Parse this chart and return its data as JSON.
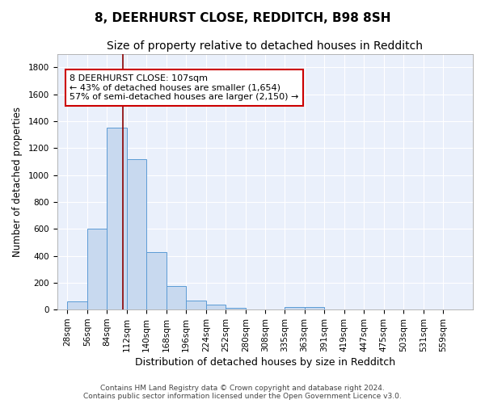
{
  "title": "8, DEERHURST CLOSE, REDDITCH, B98 8SH",
  "subtitle": "Size of property relative to detached houses in Redditch",
  "xlabel": "Distribution of detached houses by size in Redditch",
  "ylabel": "Number of detached properties",
  "bar_edges": [
    28,
    56,
    84,
    112,
    140,
    168,
    196,
    224,
    252,
    280,
    308,
    335,
    363,
    391,
    419,
    447,
    475,
    503,
    531,
    559,
    587
  ],
  "bar_heights": [
    60,
    600,
    1350,
    1120,
    425,
    175,
    65,
    40,
    15,
    0,
    0,
    20,
    20,
    0,
    0,
    0,
    0,
    0,
    0,
    0
  ],
  "bar_color": "#c8d9ef",
  "bar_edge_color": "#5b9bd5",
  "property_line_x": 107,
  "property_line_color": "#8b0000",
  "annotation_line1": "8 DEERHURST CLOSE: 107sqm",
  "annotation_line2": "← 43% of detached houses are smaller (1,654)",
  "annotation_line3": "57% of semi-detached houses are larger (2,150) →",
  "annotation_box_color": "#ffffff",
  "annotation_box_edge_color": "#cc0000",
  "ylim": [
    0,
    1900
  ],
  "yticks": [
    0,
    200,
    400,
    600,
    800,
    1000,
    1200,
    1400,
    1600,
    1800
  ],
  "background_color": "#eaf0fb",
  "grid_color": "#ffffff",
  "footer_text": "Contains HM Land Registry data © Crown copyright and database right 2024.\nContains public sector information licensed under the Open Government Licence v3.0.",
  "title_fontsize": 11,
  "subtitle_fontsize": 10,
  "xlabel_fontsize": 9,
  "ylabel_fontsize": 8.5,
  "tick_fontsize": 7.5,
  "footer_fontsize": 6.5,
  "annot_fontsize": 8
}
